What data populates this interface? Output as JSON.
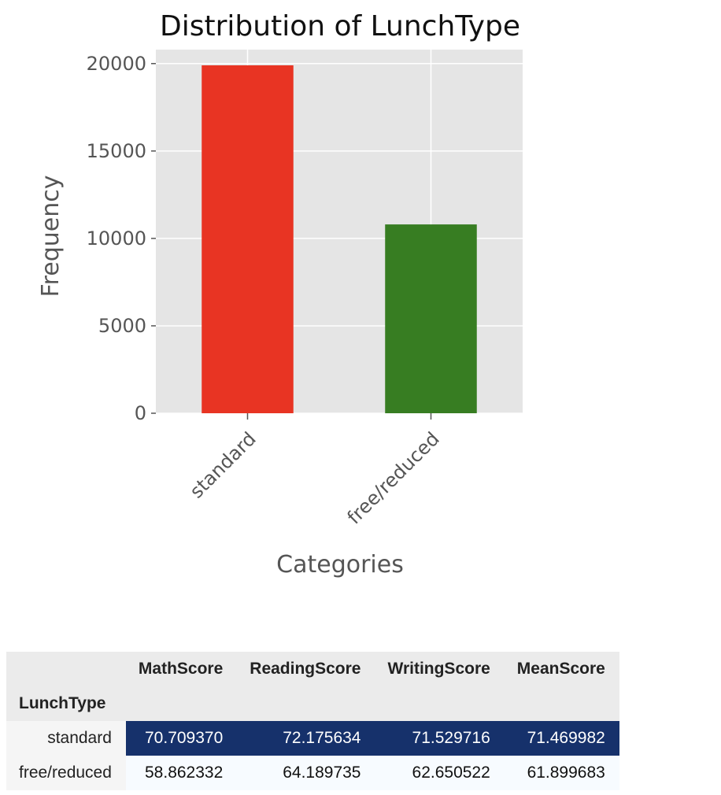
{
  "chart_data": {
    "type": "bar",
    "title": "Distribution of LunchType",
    "xlabel": "Categories",
    "ylabel": "Frequency",
    "categories": [
      "standard",
      "free/reduced"
    ],
    "values": [
      19900,
      10800
    ],
    "colors": [
      "#e83423",
      "#377d22"
    ],
    "ylim": [
      0,
      20800
    ],
    "yticks": [
      0,
      5000,
      10000,
      15000,
      20000
    ],
    "ytick_labels": [
      "0",
      "5000",
      "10000",
      "15000",
      "20000"
    ],
    "grid": true,
    "style": "ggplot"
  },
  "table": {
    "index_name": "LunchType",
    "columns": [
      "MathScore",
      "ReadingScore",
      "WritingScore",
      "MeanScore"
    ],
    "rows": [
      {
        "label": "standard",
        "values": [
          "70.709370",
          "72.175634",
          "71.529716",
          "71.469982"
        ]
      },
      {
        "label": "free/reduced",
        "values": [
          "58.862332",
          "64.189735",
          "62.650522",
          "61.899683"
        ]
      }
    ],
    "row_styles": [
      {
        "bg": "#16316b",
        "fg": "#ffffff"
      },
      {
        "bg": "#f7fbff",
        "fg": "#111111"
      }
    ]
  }
}
